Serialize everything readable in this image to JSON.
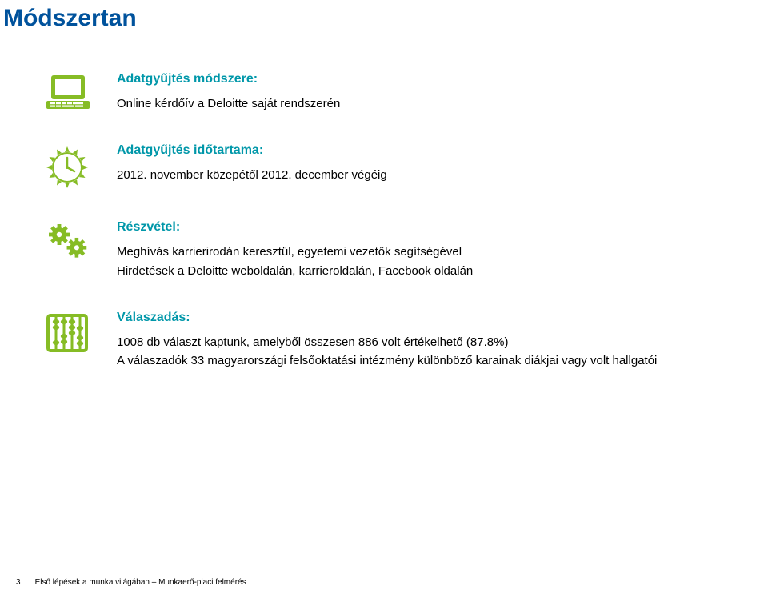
{
  "colors": {
    "title": "#00529c",
    "heading": "#0097a9",
    "icon": "#86bc25",
    "text": "#000000",
    "background": "#ffffff"
  },
  "title": "Módszertan",
  "sections": [
    {
      "icon": "laptop-icon",
      "heading": "Adatgyűjtés módszere:",
      "body": "Online kérdőív a Deloitte saját rendszerén"
    },
    {
      "icon": "clock-icon",
      "heading": "Adatgyűjtés időtartama:",
      "body": "2012. november közepétől 2012. december végéig"
    },
    {
      "icon": "gears-icon",
      "heading": "Részvétel:",
      "body": "Meghívás karrierirodán keresztül, egyetemi vezetők segítségével\nHirdetések a Deloitte weboldalán, karrieroldalán, Facebook oldalán"
    },
    {
      "icon": "abacus-icon",
      "heading": "Válaszadás:",
      "body": "1008 db választ kaptunk, amelyből összesen 886 volt értékelhető (87.8%)\nA válaszadók 33 magyarországi felsőoktatási intézmény különböző karainak diákjai vagy volt hallgatói"
    }
  ],
  "footer": {
    "page_number": "3",
    "text": "Első lépések a munka világában – Munkaerő-piaci felmérés"
  },
  "typography": {
    "title_fontsize": 30,
    "title_fontweight": "bold",
    "heading_fontsize": 16,
    "heading_fontweight": "bold",
    "body_fontsize": 15,
    "footer_fontsize": 10
  }
}
